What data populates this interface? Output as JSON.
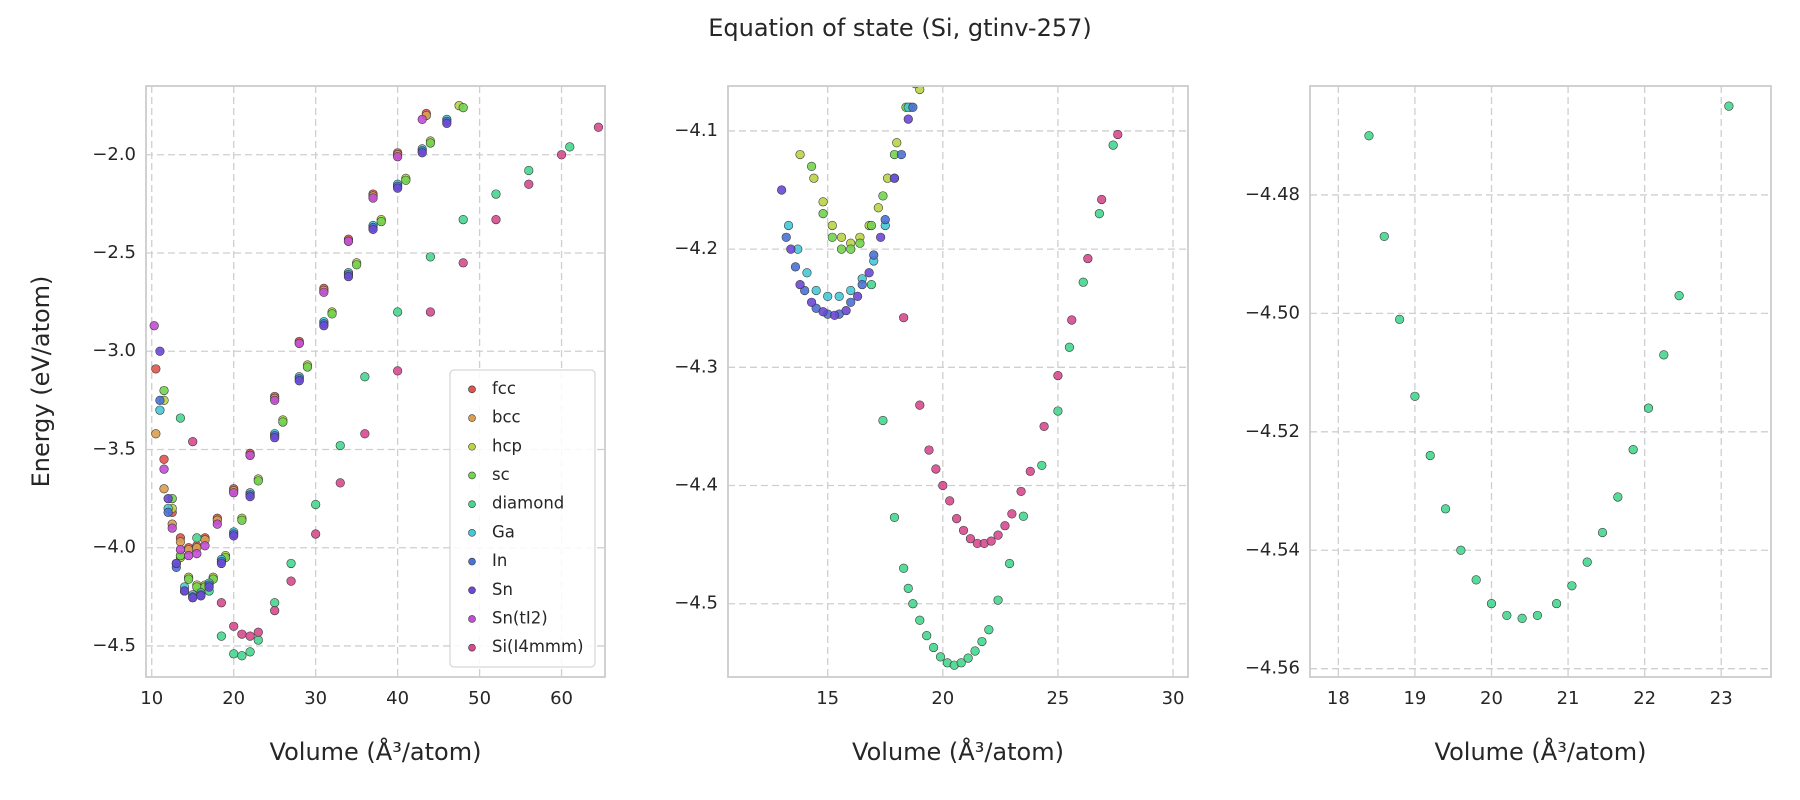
{
  "title": "Equation of state (Si, gtinv-257)",
  "chart_data": [
    {
      "type": "scatter",
      "xlabel": "Volume (Å³/atom)",
      "ylabel": "Energy (eV/atom)",
      "xlim": [
        9.3,
        65.3
      ],
      "ylim": [
        -4.658,
        -1.65
      ],
      "xticks": [
        10,
        20,
        30,
        40,
        50,
        60
      ],
      "yticks": [
        {
          "value": -4.5,
          "label": "−4.5"
        },
        {
          "value": -4.0,
          "label": "−4.0"
        },
        {
          "value": -3.5,
          "label": "−3.5"
        },
        {
          "value": -3.0,
          "label": "−3.0"
        },
        {
          "value": -2.5,
          "label": "−2.5"
        },
        {
          "value": -2.0,
          "label": "−2.0"
        }
      ],
      "grid": true,
      "legend": "lower right",
      "series": [
        {
          "name": "fcc",
          "color": "#e0544f",
          "x": [
            10.5,
            11.5,
            12.5,
            13.5,
            14.5,
            15.5,
            16.5,
            18,
            20,
            22,
            25,
            28,
            31,
            34,
            37,
            40,
            43.5
          ],
          "values": [
            -3.09,
            -3.55,
            -3.82,
            -3.95,
            -4.0,
            -3.99,
            -3.95,
            -3.85,
            -3.7,
            -3.52,
            -3.23,
            -2.95,
            -2.68,
            -2.43,
            -2.2,
            -1.99,
            -1.79
          ]
        },
        {
          "name": "bcc",
          "color": "#d9a050",
          "x": [
            10.5,
            11.5,
            12.5,
            13.5,
            14.5,
            15.5,
            16.5,
            18,
            20,
            22,
            25,
            28,
            31,
            34,
            37,
            40,
            43.5
          ],
          "values": [
            -3.42,
            -3.7,
            -3.88,
            -3.97,
            -4.01,
            -4.0,
            -3.96,
            -3.86,
            -3.71,
            -3.53,
            -3.24,
            -2.96,
            -2.69,
            -2.44,
            -2.21,
            -2.0,
            -1.8
          ]
        },
        {
          "name": "hcp",
          "color": "#b9d445",
          "x": [
            11.5,
            12.5,
            13.5,
            14.5,
            15.5,
            16.5,
            17.5,
            19,
            21,
            23,
            26,
            29,
            32,
            35,
            38,
            41,
            44,
            47.5
          ],
          "values": [
            -3.25,
            -3.8,
            -4.05,
            -4.15,
            -4.19,
            -4.19,
            -4.15,
            -4.04,
            -3.85,
            -3.65,
            -3.35,
            -3.07,
            -2.8,
            -2.55,
            -2.33,
            -2.12,
            -1.93,
            -1.75
          ]
        },
        {
          "name": "sc",
          "color": "#72d44f",
          "x": [
            11.5,
            12.5,
            13.5,
            14.5,
            15.5,
            16.5,
            17.5,
            19,
            21,
            23,
            26,
            29,
            32,
            35,
            38,
            41,
            44,
            48
          ],
          "values": [
            -3.2,
            -3.75,
            -4.04,
            -4.16,
            -4.2,
            -4.2,
            -4.16,
            -4.05,
            -3.86,
            -3.66,
            -3.36,
            -3.08,
            -2.81,
            -2.56,
            -2.34,
            -2.13,
            -1.94,
            -1.76
          ]
        },
        {
          "name": "diamond",
          "color": "#45d68f",
          "x": [
            13.5,
            15.5,
            17,
            18.5,
            20,
            21,
            22,
            23,
            25,
            27,
            30,
            33,
            36,
            40,
            44,
            48,
            52,
            56,
            61
          ],
          "values": [
            -3.34,
            -3.95,
            -4.22,
            -4.45,
            -4.54,
            -4.55,
            -4.53,
            -4.47,
            -4.28,
            -4.08,
            -3.78,
            -3.48,
            -3.13,
            -2.8,
            -2.52,
            -2.33,
            -2.2,
            -2.08,
            -1.96
          ]
        },
        {
          "name": "Ga",
          "color": "#45c9d6",
          "x": [
            11,
            12,
            13,
            14,
            15,
            16,
            17,
            18.5,
            20,
            22,
            25,
            28,
            31,
            34,
            37,
            40,
            43,
            46
          ],
          "values": [
            -3.3,
            -3.8,
            -4.08,
            -4.2,
            -4.24,
            -4.23,
            -4.18,
            -4.06,
            -3.92,
            -3.72,
            -3.42,
            -3.13,
            -2.85,
            -2.6,
            -2.36,
            -2.15,
            -1.97,
            -1.82
          ]
        },
        {
          "name": "In",
          "color": "#4a72d6",
          "x": [
            11,
            12,
            13,
            14,
            15,
            16,
            17,
            18.5,
            20,
            22,
            25,
            28,
            31,
            34,
            37,
            40,
            43,
            46
          ],
          "values": [
            -3.25,
            -3.82,
            -4.1,
            -4.22,
            -4.25,
            -4.24,
            -4.19,
            -4.07,
            -3.93,
            -3.73,
            -3.43,
            -3.14,
            -2.86,
            -2.61,
            -2.37,
            -2.16,
            -1.98,
            -1.83
          ]
        },
        {
          "name": "Sn",
          "color": "#6b48d6",
          "x": [
            11,
            12,
            13,
            14,
            15,
            16,
            17,
            18.5,
            20,
            22,
            25,
            28,
            31,
            34,
            37,
            40,
            43,
            46
          ],
          "values": [
            -3.0,
            -3.75,
            -4.08,
            -4.22,
            -4.255,
            -4.245,
            -4.2,
            -4.08,
            -3.94,
            -3.74,
            -3.44,
            -3.15,
            -2.87,
            -2.62,
            -2.38,
            -2.17,
            -1.99,
            -1.84
          ]
        },
        {
          "name": "Sn(tI2)",
          "color": "#c34bd6",
          "x": [
            10.3,
            11.5,
            12.5,
            13.5,
            14.5,
            15.5,
            16.5,
            18,
            20,
            22,
            25,
            28,
            31,
            34,
            37,
            40,
            43
          ],
          "values": [
            -2.87,
            -3.6,
            -3.9,
            -4.01,
            -4.04,
            -4.03,
            -3.99,
            -3.88,
            -3.72,
            -3.53,
            -3.25,
            -2.96,
            -2.7,
            -2.44,
            -2.22,
            -2.01,
            -1.82
          ]
        },
        {
          "name": "Si(I4mmm)",
          "color": "#d64a8e",
          "x": [
            15,
            18.5,
            20,
            21,
            22,
            23,
            25,
            27,
            30,
            33,
            36,
            40,
            44,
            48,
            52,
            56,
            60,
            64.5
          ],
          "values": [
            -3.46,
            -4.28,
            -4.4,
            -4.44,
            -4.45,
            -4.43,
            -4.32,
            -4.17,
            -3.93,
            -3.67,
            -3.42,
            -3.1,
            -2.8,
            -2.55,
            -2.33,
            -2.15,
            -2.0,
            -1.86
          ]
        }
      ]
    },
    {
      "type": "scatter",
      "xlabel": "Volume (Å³/atom)",
      "xlim": [
        10.67,
        30.65
      ],
      "ylim": [
        -4.562,
        -4.062
      ],
      "xticks": [
        15,
        20,
        25,
        30
      ],
      "yticks": [
        {
          "value": -4.5,
          "label": "−4.5"
        },
        {
          "value": -4.4,
          "label": "−4.4"
        },
        {
          "value": -4.3,
          "label": "−4.3"
        },
        {
          "value": -4.2,
          "label": "−4.2"
        },
        {
          "value": -4.1,
          "label": "−4.1"
        }
      ],
      "grid": true,
      "series": [
        {
          "color": "#b9d445",
          "x": [
            13.8,
            14.4,
            14.8,
            15.2,
            15.6,
            16.0,
            16.4,
            16.8,
            17.2,
            17.6,
            18.0,
            18.6,
            19.0
          ],
          "values": [
            -4.12,
            -4.14,
            -4.16,
            -4.18,
            -4.19,
            -4.195,
            -4.19,
            -4.18,
            -4.165,
            -4.14,
            -4.11,
            -4.08,
            -4.065
          ]
        },
        {
          "color": "#72d44f",
          "x": [
            14.3,
            14.8,
            15.2,
            15.6,
            16.0,
            16.4,
            16.9,
            17.4,
            17.9,
            18.4,
            18.8
          ],
          "values": [
            -4.13,
            -4.17,
            -4.19,
            -4.2,
            -4.2,
            -4.195,
            -4.18,
            -4.155,
            -4.12,
            -4.08,
            -4.06
          ]
        },
        {
          "color": "#45c9d6",
          "x": [
            13.3,
            13.7,
            14.1,
            14.5,
            15.0,
            15.5,
            16.0,
            16.5,
            17.0,
            17.5,
            17.9,
            18.5
          ],
          "values": [
            -4.18,
            -4.2,
            -4.22,
            -4.235,
            -4.24,
            -4.24,
            -4.235,
            -4.225,
            -4.21,
            -4.18,
            -4.14,
            -4.08
          ]
        },
        {
          "color": "#4a72d6",
          "x": [
            13.2,
            13.6,
            14.0,
            14.5,
            15.0,
            15.5,
            16.0,
            16.5,
            17.0,
            17.5,
            18.2,
            18.7
          ],
          "values": [
            -4.19,
            -4.215,
            -4.235,
            -4.25,
            -4.255,
            -4.255,
            -4.245,
            -4.23,
            -4.205,
            -4.175,
            -4.12,
            -4.08
          ]
        },
        {
          "color": "#6b48d6",
          "x": [
            13.0,
            13.4,
            13.8,
            14.3,
            14.8,
            15.3,
            15.8,
            16.3,
            16.8,
            17.3,
            17.9,
            18.5
          ],
          "values": [
            -4.15,
            -4.2,
            -4.23,
            -4.245,
            -4.253,
            -4.256,
            -4.252,
            -4.24,
            -4.22,
            -4.19,
            -4.14,
            -4.09
          ]
        },
        {
          "color": "#45d68f",
          "x": [
            16.9,
            17.4,
            17.9,
            18.3,
            18.5,
            18.7,
            19.0,
            19.3,
            19.6,
            19.9,
            20.2,
            20.5,
            20.8,
            21.1,
            21.4,
            21.7,
            22.0,
            22.4,
            22.9,
            23.5,
            24.3,
            25.0,
            25.5,
            26.1,
            26.8,
            27.4
          ],
          "values": [
            -4.23,
            -4.345,
            -4.427,
            -4.47,
            -4.487,
            -4.5,
            -4.514,
            -4.527,
            -4.537,
            -4.545,
            -4.55,
            -4.552,
            -4.55,
            -4.546,
            -4.54,
            -4.532,
            -4.522,
            -4.497,
            -4.466,
            -4.426,
            -4.383,
            -4.337,
            -4.283,
            -4.228,
            -4.17,
            -4.112
          ]
        },
        {
          "color": "#d64a8e",
          "x": [
            18.3,
            19.0,
            19.4,
            19.7,
            20.0,
            20.3,
            20.6,
            20.9,
            21.2,
            21.5,
            21.8,
            22.1,
            22.4,
            22.7,
            23.0,
            23.4,
            23.8,
            24.4,
            25.0,
            25.6,
            26.3,
            26.9,
            27.6
          ],
          "values": [
            -4.258,
            -4.332,
            -4.37,
            -4.386,
            -4.4,
            -4.413,
            -4.428,
            -4.438,
            -4.445,
            -4.449,
            -4.449,
            -4.447,
            -4.442,
            -4.434,
            -4.424,
            -4.405,
            -4.388,
            -4.35,
            -4.307,
            -4.26,
            -4.208,
            -4.158,
            -4.103
          ]
        }
      ]
    },
    {
      "type": "scatter",
      "xlabel": "Volume (Å³/atom)",
      "xlim": [
        17.63,
        23.65
      ],
      "ylim": [
        -4.5614,
        -4.4616
      ],
      "xticks": [
        18,
        19,
        20,
        21,
        22,
        23
      ],
      "yticks": [
        {
          "value": -4.56,
          "label": "−4.56"
        },
        {
          "value": -4.54,
          "label": "−4.54"
        },
        {
          "value": -4.52,
          "label": "−4.52"
        },
        {
          "value": -4.5,
          "label": "−4.50"
        },
        {
          "value": -4.48,
          "label": "−4.48"
        }
      ],
      "grid": true,
      "series": [
        {
          "color": "#45d68f",
          "x": [
            18.4,
            18.6,
            18.8,
            19.0,
            19.2,
            19.4,
            19.6,
            19.8,
            20.0,
            20.2,
            20.4,
            20.6,
            20.85,
            21.05,
            21.25,
            21.45,
            21.65,
            21.85,
            22.05,
            22.25,
            22.45,
            23.1
          ],
          "values": [
            -4.47,
            -4.487,
            -4.501,
            -4.514,
            -4.524,
            -4.533,
            -4.54,
            -4.545,
            -4.549,
            -4.551,
            -4.5515,
            -4.551,
            -4.549,
            -4.546,
            -4.542,
            -4.537,
            -4.531,
            -4.523,
            -4.516,
            -4.507,
            -4.497,
            -4.465
          ]
        }
      ]
    }
  ]
}
